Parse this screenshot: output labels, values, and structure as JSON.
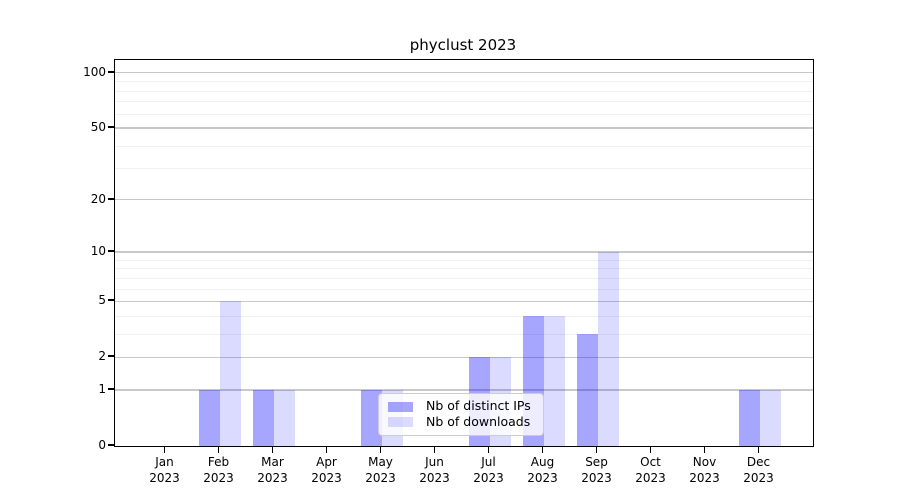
{
  "chart_data": {
    "type": "bar",
    "title": "phyclust 2023",
    "x_categories": [
      "Jan",
      "Feb",
      "Mar",
      "Apr",
      "May",
      "Jun",
      "Jul",
      "Aug",
      "Sep",
      "Oct",
      "Nov",
      "Dec"
    ],
    "x_sublabel": "2023",
    "series": [
      {
        "name": "Nb of distinct IPs",
        "color": "rgba(0,0,255,0.35)",
        "values": [
          0,
          1,
          1,
          0,
          1,
          0,
          2,
          4,
          3,
          0,
          0,
          1
        ]
      },
      {
        "name": "Nb of downloads",
        "color": "rgba(0,0,255,0.14)",
        "values": [
          0,
          5,
          1,
          0,
          1,
          0,
          2,
          4,
          10,
          0,
          0,
          1
        ]
      }
    ],
    "y_axis": {
      "scale": "log10(1+x)",
      "tick_labels": [
        0,
        1,
        2,
        5,
        10,
        20,
        50,
        100
      ],
      "minor_gridlines": [
        3,
        4,
        6,
        7,
        8,
        9,
        30,
        40,
        60,
        70,
        80,
        90
      ],
      "range": [
        0,
        100
      ]
    },
    "legend": {
      "position": "inside-bottom-center",
      "entries": [
        "Nb of distinct IPs",
        "Nb of downloads"
      ]
    },
    "grid": true,
    "colors": {
      "bar_distinct_ips_on_white": "#a6a6ff",
      "bar_downloads_on_white": "#dbdbff",
      "grid_major": "#c9c9c9",
      "grid_minor": "#f0f0f0",
      "axis": "#000000",
      "legend_border": "#cccccc"
    }
  }
}
